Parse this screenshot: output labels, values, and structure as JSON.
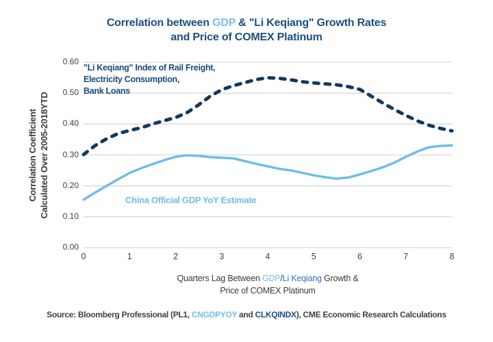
{
  "title": {
    "part1": "Correlation between ",
    "gdp": "GDP",
    "part2": " & \"Li Keqiang\" Growth Rates",
    "line2": "and Price of COMEX Platinum"
  },
  "legend_li_keqiang": {
    "line1": "\"Li Keqiang\" Index of Rail Freight,",
    "line2": "Electricity Consumption,",
    "line3": "Bank Loans"
  },
  "legend_gdp": "China Official GDP YoY Estimate",
  "y_axis": {
    "title_line1": "Correlation Coefficient",
    "title_line2": "Calculated Over 2005-2018YTD"
  },
  "x_axis": {
    "title": {
      "part1": "Quarters Lag Between ",
      "gdp": "GDP",
      "slash": "/",
      "li_keqiang": "Li Keqiang",
      "part2": " Growth &",
      "line2": "Price of COMEX Platinum"
    }
  },
  "source": {
    "part1": "Source: Bloomberg Professional (PL1, ",
    "ticker1": "CNGDPYOY",
    "part2": " and ",
    "ticker2": "CLKQINDX",
    "part3": "), CME Economic Research Calculations"
  },
  "colors": {
    "title_navy": "#1C4E7E",
    "legend_navy": "#1B4B7A",
    "line_navy": "#12395F",
    "line_light_blue": "#6FBDE8",
    "highlight_light_blue": "#74BFE8",
    "highlight_mid_blue": "#2E74B5",
    "axis_text": "#3A3A3A",
    "gridline": "#D8D8D8"
  },
  "chart_data": {
    "type": "line",
    "title": "Correlation between GDP & \"Li Keqiang\" Growth Rates and Price of COMEX Platinum",
    "xlabel": "Quarters Lag Between GDP/Li Keqiang Growth & Price of COMEX Platinum",
    "ylabel": "Correlation Coefficient Calculated Over 2005-2018YTD",
    "xlim": [
      0,
      8
    ],
    "ylim": [
      0,
      0.6
    ],
    "x_step": 0.25,
    "grid": "horizontal-only",
    "legend_position": "inline-annotations",
    "yticks": [
      0.0,
      0.1,
      0.2,
      0.3,
      0.4,
      0.5,
      0.6
    ],
    "ytick_labels": [
      "0.00",
      "0.10",
      "0.20",
      "0.30",
      "0.40",
      "0.50",
      "0.60"
    ],
    "xticks": [
      0,
      1,
      2,
      3,
      4,
      5,
      6,
      7,
      8
    ],
    "xtick_labels": [
      "0",
      "1",
      "2",
      "3",
      "4",
      "5",
      "6",
      "7",
      "8"
    ],
    "series": [
      {
        "name": "\"Li Keqiang\" Index of Rail Freight, Electricity Consumption, Bank Loans",
        "style": "dashed",
        "color": "#12395F",
        "x_start": 0,
        "x_step": 0.25,
        "values": [
          0.301,
          0.33,
          0.352,
          0.369,
          0.379,
          0.388,
          0.4,
          0.411,
          0.421,
          0.437,
          0.462,
          0.49,
          0.511,
          0.524,
          0.534,
          0.544,
          0.55,
          0.548,
          0.543,
          0.537,
          0.533,
          0.53,
          0.527,
          0.521,
          0.512,
          0.49,
          0.468,
          0.447,
          0.428,
          0.41,
          0.396,
          0.386,
          0.378
        ]
      },
      {
        "name": "China Official GDP YoY Estimate",
        "style": "solid",
        "color": "#6FBDE8",
        "x_start": 0,
        "x_step": 0.25,
        "values": [
          0.155,
          0.178,
          0.2,
          0.221,
          0.242,
          0.257,
          0.27,
          0.283,
          0.294,
          0.299,
          0.297,
          0.293,
          0.291,
          0.289,
          0.28,
          0.271,
          0.263,
          0.255,
          0.25,
          0.242,
          0.234,
          0.228,
          0.223,
          0.227,
          0.237,
          0.248,
          0.26,
          0.275,
          0.294,
          0.311,
          0.325,
          0.329,
          0.331
        ]
      }
    ]
  }
}
